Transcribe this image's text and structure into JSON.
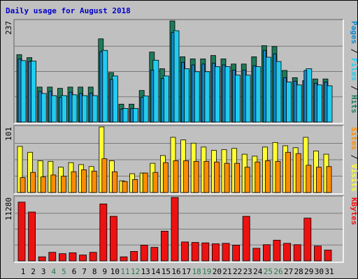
{
  "title": "Daily usage for August 2018",
  "colors": {
    "hits": "#1e7a5a",
    "files": "#22ccee",
    "pages": "#1188cc",
    "visits": "#ffff33",
    "sites": "#ff8c00",
    "kbytes": "#ee1111",
    "title": "#0000cc",
    "weekend_day": "#2a7a4a",
    "weekday_day": "#000000"
  },
  "chart_data": [
    {
      "type": "bar",
      "name": "hits-files-pages",
      "categories": [
        "1",
        "2",
        "3",
        "4",
        "5",
        "6",
        "7",
        "8",
        "9",
        "10",
        "11",
        "12",
        "13",
        "14",
        "15",
        "16",
        "17",
        "18",
        "19",
        "20",
        "21",
        "22",
        "23",
        "24",
        "25",
        "26",
        "27",
        "28",
        "29",
        "30",
        "31"
      ],
      "ymax_label": "237",
      "ylim": [
        0,
        237
      ],
      "legend": [
        "Pages",
        "Files",
        "Hits"
      ],
      "series": [
        {
          "name": "Hits",
          "values": [
            158,
            151,
            82,
            82,
            79,
            82,
            82,
            82,
            195,
            116,
            42,
            42,
            74,
            164,
            125,
            237,
            153,
            148,
            148,
            156,
            148,
            136,
            136,
            153,
            179,
            177,
            121,
            104,
            97,
            101,
            101
          ]
        },
        {
          "name": "Files",
          "values": [
            144,
            143,
            67,
            62,
            62,
            64,
            62,
            62,
            168,
            108,
            32,
            32,
            61,
            145,
            108,
            214,
            125,
            118,
            118,
            130,
            130,
            110,
            110,
            130,
            152,
            142,
            94,
            87,
            125,
            87,
            85
          ]
        },
        {
          "name": "Pages",
          "values": [
            148,
            142,
            72,
            72,
            58,
            70,
            67,
            68,
            165,
            100,
            30,
            32,
            58,
            122,
            102,
            210,
            140,
            134,
            136,
            138,
            134,
            122,
            122,
            132,
            168,
            160,
            104,
            96,
            121,
            91,
            94
          ]
        }
      ]
    },
    {
      "type": "bar",
      "name": "visits-sites",
      "categories": [
        "1",
        "2",
        "3",
        "4",
        "5",
        "6",
        "7",
        "8",
        "9",
        "10",
        "11",
        "12",
        "13",
        "14",
        "15",
        "16",
        "17",
        "18",
        "19",
        "20",
        "21",
        "22",
        "23",
        "24",
        "25",
        "26",
        "27",
        "28",
        "29",
        "30",
        "31"
      ],
      "ymax_label": "101",
      "ylim": [
        0,
        101
      ],
      "legend": [
        "Sites",
        "Visits"
      ],
      "series": [
        {
          "name": "Visits",
          "values": [
            71,
            62,
            49,
            48,
            39,
            46,
            43,
            40,
            101,
            49,
            18,
            29,
            30,
            45,
            57,
            85,
            81,
            76,
            70,
            65,
            66,
            68,
            59,
            56,
            70,
            77,
            72,
            69,
            85,
            64,
            59
          ]
        },
        {
          "name": "Sites",
          "values": [
            23,
            31,
            24,
            27,
            25,
            32,
            35,
            33,
            52,
            32,
            17,
            20,
            30,
            31,
            46,
            49,
            49,
            48,
            48,
            47,
            45,
            45,
            39,
            47,
            49,
            48,
            62,
            60,
            42,
            39,
            40
          ]
        }
      ]
    },
    {
      "type": "bar",
      "name": "kbytes",
      "categories": [
        "1",
        "2",
        "3",
        "4",
        "5",
        "6",
        "7",
        "8",
        "9",
        "10",
        "11",
        "12",
        "13",
        "14",
        "15",
        "16",
        "17",
        "18",
        "19",
        "20",
        "21",
        "22",
        "23",
        "24",
        "25",
        "26",
        "27",
        "28",
        "29",
        "30",
        "31"
      ],
      "ymax_label": "11280",
      "ylim": [
        0,
        11280
      ],
      "legend": [
        "KBytes"
      ],
      "series": [
        {
          "name": "KBytes",
          "values": [
            10440,
            8680,
            720,
            1520,
            1280,
            1440,
            1040,
            1520,
            10120,
            7920,
            720,
            1680,
            2800,
            2400,
            5280,
            11280,
            3360,
            3280,
            3200,
            3040,
            3120,
            2800,
            7920,
            2240,
            2880,
            3680,
            3120,
            2880,
            7600,
            2640,
            1920
          ]
        }
      ]
    }
  ]
}
